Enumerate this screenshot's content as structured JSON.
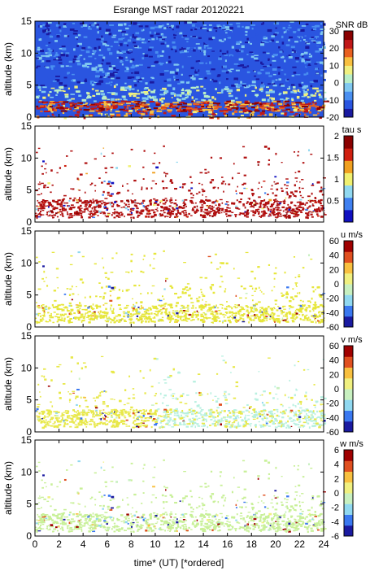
{
  "figure": {
    "title": "Esrange MST radar 20120221",
    "xlabel": "time* (UT)   [*ordered]"
  },
  "chart_data": [
    {
      "type": "heatmap",
      "ylabel": "altitude (km)",
      "colorbar_label": "SNR dB",
      "colorbar_ticks": [
        "30",
        "20",
        "10",
        "0",
        "-10",
        "-20"
      ],
      "ylim": [
        0,
        15
      ],
      "yticks": [
        "0",
        "5",
        "10",
        "15"
      ],
      "xlim": [
        0,
        24
      ],
      "fill": "full",
      "colorscale": [
        "#1a1aa0",
        "#2a55e0",
        "#4a8ff0",
        "#80c8f0",
        "#b8eec8",
        "#f0f080",
        "#f8c040",
        "#e86020",
        "#c01818",
        "#8a0000"
      ],
      "clim": [
        -20,
        30
      ]
    },
    {
      "type": "heatmap",
      "ylabel": "altitude (km)",
      "colorbar_label": "tau s",
      "colorbar_ticks": [
        "2",
        "1.5",
        "1",
        "0.5"
      ],
      "ylim": [
        0,
        15
      ],
      "yticks": [
        "0",
        "5",
        "10",
        "15"
      ],
      "xlim": [
        0,
        24
      ],
      "fill": "sparse",
      "dominant_color": "#b01010",
      "colorscale": [
        "#1010c0",
        "#4080f0",
        "#90d8f0",
        "#f0f070",
        "#f0a020",
        "#d02010",
        "#8a0000"
      ],
      "clim": [
        0,
        2
      ]
    },
    {
      "type": "heatmap",
      "ylabel": "altitude (km)",
      "colorbar_label": "u m/s",
      "colorbar_ticks": [
        "60",
        "40",
        "20",
        "0",
        "-20",
        "-40",
        "-60"
      ],
      "ylim": [
        0,
        15
      ],
      "yticks": [
        "0",
        "5",
        "10",
        "15"
      ],
      "xlim": [
        0,
        24
      ],
      "fill": "sparse",
      "dominant_color": "#e6e63a",
      "colorscale": [
        "#1a1aa0",
        "#3a78f0",
        "#90d8f0",
        "#c8f0c0",
        "#f0f080",
        "#f8c040",
        "#e05020",
        "#a00000"
      ],
      "clim": [
        -60,
        60
      ]
    },
    {
      "type": "heatmap",
      "ylabel": "altitude (km)",
      "colorbar_label": "v m/s",
      "colorbar_ticks": [
        "60",
        "40",
        "20",
        "0",
        "-20",
        "-40",
        "-60"
      ],
      "ylim": [
        0,
        15
      ],
      "yticks": [
        "0",
        "5",
        "10",
        "15"
      ],
      "xlim": [
        0,
        24
      ],
      "fill": "sparse",
      "dominant_color": "#e8e84a",
      "secondary_color": "#b8f0e0",
      "colorscale": [
        "#1a1aa0",
        "#3a78f0",
        "#90d8f0",
        "#c8f0c0",
        "#f0f080",
        "#f8c040",
        "#e05020",
        "#a00000"
      ],
      "clim": [
        -60,
        60
      ]
    },
    {
      "type": "heatmap",
      "ylabel": "altitude (km)",
      "colorbar_label": "w m/s",
      "colorbar_ticks": [
        "6",
        "4",
        "2",
        "0",
        "-2",
        "-4",
        "-6"
      ],
      "ylim": [
        0,
        15
      ],
      "yticks": [
        "0",
        "5",
        "10",
        "15"
      ],
      "xlim": [
        0,
        24
      ],
      "xticks": [
        "0",
        "2",
        "4",
        "6",
        "8",
        "10",
        "12",
        "14",
        "16",
        "18",
        "20",
        "22",
        "24"
      ],
      "fill": "sparse",
      "dominant_color": "#c8f098",
      "colorscale": [
        "#1a1aa0",
        "#3a78f0",
        "#90d8f0",
        "#c8f0c0",
        "#f0f080",
        "#f8c040",
        "#e05020",
        "#a00000"
      ],
      "clim": [
        -6,
        6
      ]
    }
  ]
}
